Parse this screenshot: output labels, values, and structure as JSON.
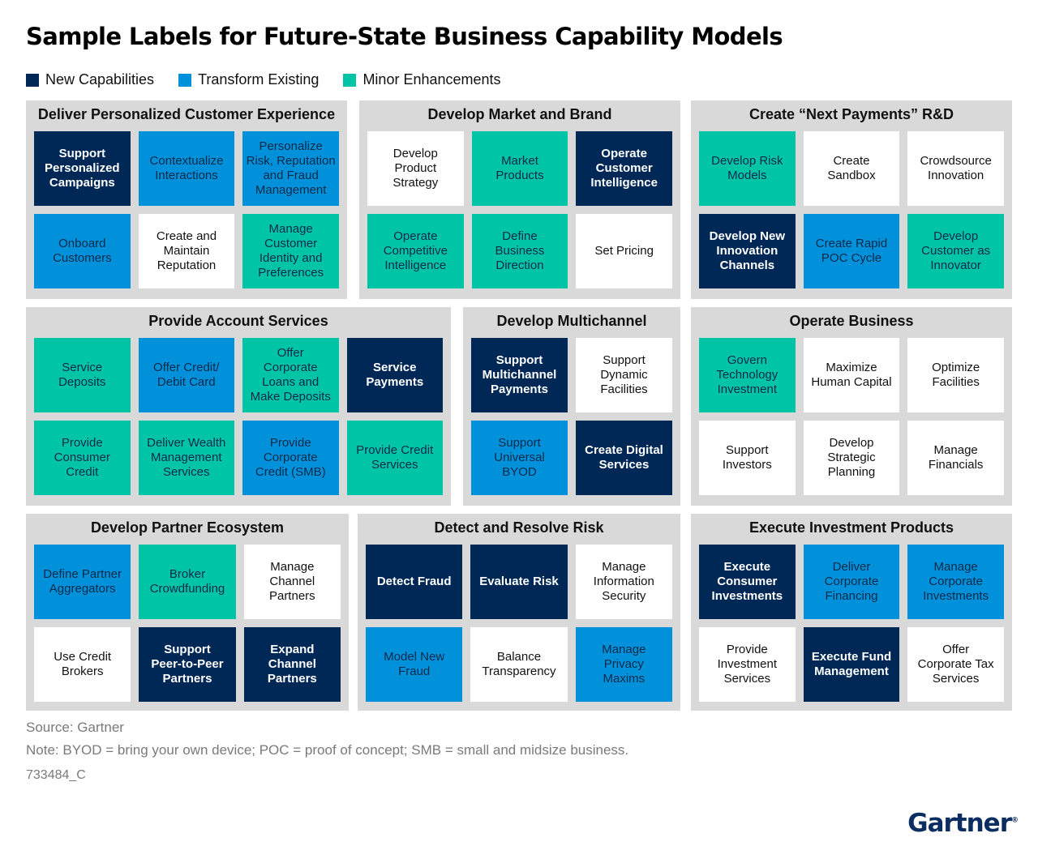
{
  "title": "Sample Labels for Future-State Business Capability Models",
  "colors": {
    "new": "#002856",
    "transform": "#0091da",
    "minor": "#00c4a6",
    "none": "#ffffff",
    "panel": "#d9d9d9"
  },
  "legend": [
    {
      "label": "New Capabilities",
      "type": "new"
    },
    {
      "label": "Transform Existing",
      "type": "transform"
    },
    {
      "label": "Minor Enhancements",
      "type": "minor"
    }
  ],
  "groups": [
    {
      "title": "Deliver Personalized Customer Experience",
      "cells": [
        {
          "label": "Support\nPersonalized\nCampaigns",
          "type": "new"
        },
        {
          "label": "Contextualize\nInteractions",
          "type": "transform"
        },
        {
          "label": "Personalize\nRisk, Reputation\nand Fraud\nManagement",
          "type": "transform"
        },
        {
          "label": "Onboard\nCustomers",
          "type": "transform"
        },
        {
          "label": "Create and\nMaintain\nReputation",
          "type": "none"
        },
        {
          "label": "Manage\nCustomer\nIdentity and\nPreferences",
          "type": "minor"
        }
      ]
    },
    {
      "title": "Develop Market and Brand",
      "cells": [
        {
          "label": "Develop\nProduct\nStrategy",
          "type": "none"
        },
        {
          "label": "Market\nProducts",
          "type": "minor"
        },
        {
          "label": "Operate\nCustomer\nIntelligence",
          "type": "new"
        },
        {
          "label": "Operate\nCompetitive\nIntelligence",
          "type": "minor"
        },
        {
          "label": "Define\nBusiness\nDirection",
          "type": "minor"
        },
        {
          "label": "Set Pricing",
          "type": "none"
        }
      ]
    },
    {
      "title": "Create “Next Payments” R&D",
      "cells": [
        {
          "label": "Develop Risk\nModels",
          "type": "minor"
        },
        {
          "label": "Create\nSandbox",
          "type": "none"
        },
        {
          "label": "Crowdsource\nInnovation",
          "type": "none"
        },
        {
          "label": "Develop New\nInnovation\nChannels",
          "type": "new"
        },
        {
          "label": "Create Rapid\nPOC Cycle",
          "type": "transform"
        },
        {
          "label": "Develop\nCustomer as\nInnovator",
          "type": "minor"
        }
      ]
    },
    {
      "title": "Provide Account Services",
      "cells": [
        {
          "label": "Service\nDeposits",
          "type": "minor"
        },
        {
          "label": "Offer Credit/\nDebit Card",
          "type": "transform"
        },
        {
          "label": "Offer\nCorporate\nLoans and\nMake Deposits",
          "type": "minor"
        },
        {
          "label": "Service\nPayments",
          "type": "new"
        },
        {
          "label": "Provide\nConsumer\nCredit",
          "type": "minor"
        },
        {
          "label": "Deliver Wealth\nManagement\nServices",
          "type": "minor"
        },
        {
          "label": "Provide\nCorporate\nCredit (SMB)",
          "type": "transform"
        },
        {
          "label": "Provide Credit\nServices",
          "type": "minor"
        }
      ]
    },
    {
      "title": "Develop Multichannel",
      "cells": [
        {
          "label": "Support\nMultichannel\nPayments",
          "type": "new"
        },
        {
          "label": "Support\nDynamic\nFacilities",
          "type": "none"
        },
        {
          "label": "Support\nUniversal\nBYOD",
          "type": "transform"
        },
        {
          "label": "Create Digital\nServices",
          "type": "new"
        }
      ]
    },
    {
      "title": "Operate Business",
      "cells": [
        {
          "label": "Govern\nTechnology\nInvestment",
          "type": "minor"
        },
        {
          "label": "Maximize\nHuman Capital",
          "type": "none"
        },
        {
          "label": "Optimize\nFacilities",
          "type": "none"
        },
        {
          "label": "Support\nInvestors",
          "type": "none"
        },
        {
          "label": "Develop\nStrategic\nPlanning",
          "type": "none"
        },
        {
          "label": "Manage\nFinancials",
          "type": "none"
        }
      ]
    },
    {
      "title": "Develop Partner Ecosystem",
      "cells": [
        {
          "label": "Define Partner\nAggregators",
          "type": "transform"
        },
        {
          "label": "Broker\nCrowdfunding",
          "type": "minor"
        },
        {
          "label": "Manage\nChannel\nPartners",
          "type": "none"
        },
        {
          "label": "Use Credit\nBrokers",
          "type": "none"
        },
        {
          "label": "Support\nPeer-to-Peer\nPartners",
          "type": "new"
        },
        {
          "label": "Expand\nChannel\nPartners",
          "type": "new"
        }
      ]
    },
    {
      "title": "Detect and Resolve Risk",
      "cells": [
        {
          "label": "Detect Fraud",
          "type": "new"
        },
        {
          "label": "Evaluate Risk",
          "type": "new"
        },
        {
          "label": "Manage\nInformation\nSecurity",
          "type": "none"
        },
        {
          "label": "Model New\nFraud",
          "type": "transform"
        },
        {
          "label": "Balance\nTransparency",
          "type": "none"
        },
        {
          "label": "Manage\nPrivacy\nMaxims",
          "type": "transform"
        }
      ]
    },
    {
      "title": "Execute Investment Products",
      "cells": [
        {
          "label": "Execute\nConsumer\nInvestments",
          "type": "new"
        },
        {
          "label": "Deliver\nCorporate\nFinancing",
          "type": "transform"
        },
        {
          "label": "Manage\nCorporate\nInvestments",
          "type": "transform"
        },
        {
          "label": "Provide\nInvestment\nServices",
          "type": "none"
        },
        {
          "label": "Execute Fund\nManagement",
          "type": "new"
        },
        {
          "label": "Offer\nCorporate Tax\nServices",
          "type": "none"
        }
      ]
    }
  ],
  "footer": {
    "source": "Source: Gartner",
    "note": "Note: BYOD = bring your own device; POC = proof of concept; SMB = small and midsize business.",
    "id": "733484_C"
  },
  "brand": {
    "name": "Gartner",
    "mark": "®"
  }
}
